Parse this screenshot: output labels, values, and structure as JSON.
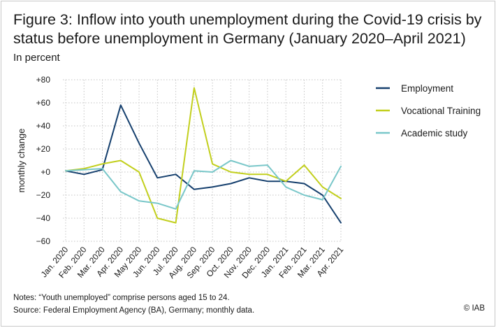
{
  "header": {
    "title": "Figure 3: Inflow into youth unemployment during the Covid-19 crisis by status before unemployment in Germany (January 2020–April 2021)",
    "subtitle": "In percent"
  },
  "footer": {
    "notes": "Notes: “Youth unemployed” comprise persons aged 15 to 24.",
    "source": "Source: Federal Employment Agency (BA), Germany; monthly data.",
    "copyright": "© IAB"
  },
  "chart_data": {
    "type": "line",
    "title": "Figure 3: Inflow into youth unemployment during the Covid-19 crisis by status before unemployment in Germany (January 2020–April 2021)",
    "subtitle": "In percent",
    "xlabel": "",
    "ylabel": "monthly change",
    "ylim": [
      -60,
      80
    ],
    "yticks": [
      80,
      60,
      40,
      20,
      0,
      -20,
      -40,
      -60
    ],
    "ytick_labels": [
      "+80",
      "+60",
      "+40",
      "+20",
      "+0",
      "−20",
      "−40",
      "−60"
    ],
    "categories": [
      "Jan. 2020",
      "Feb. 2020",
      "Mar. 2020",
      "Apr. 2020",
      "May 2020",
      "Jun. 2020",
      "Jul. 2020",
      "Aug. 2020",
      "Sep. 2020",
      "Oct. 2020",
      "Nov. 2020",
      "Dec. 2020",
      "Jan. 2021",
      "Feb. 2021",
      "Mar. 2021",
      "Apr. 2021"
    ],
    "grid": "dotted",
    "legend_position": "right",
    "series": [
      {
        "name": "Employment",
        "color": "#16406e",
        "values": [
          1,
          -2,
          2,
          58,
          25,
          -5,
          -2,
          -15,
          -13,
          -10,
          -5,
          -8,
          -8,
          -10,
          -20,
          -44
        ]
      },
      {
        "name": "Vocational Training",
        "color": "#c2cf1d",
        "values": [
          1,
          3,
          7,
          10,
          0,
          -40,
          -44,
          73,
          7,
          0,
          -2,
          -2,
          -8,
          6,
          -13,
          -23
        ]
      },
      {
        "name": "Academic study",
        "color": "#79c7c9",
        "values": [
          1,
          null,
          3,
          -17,
          -25,
          -27,
          -32,
          1,
          0,
          10,
          5,
          6,
          -13,
          -20,
          -24,
          5
        ]
      }
    ]
  }
}
